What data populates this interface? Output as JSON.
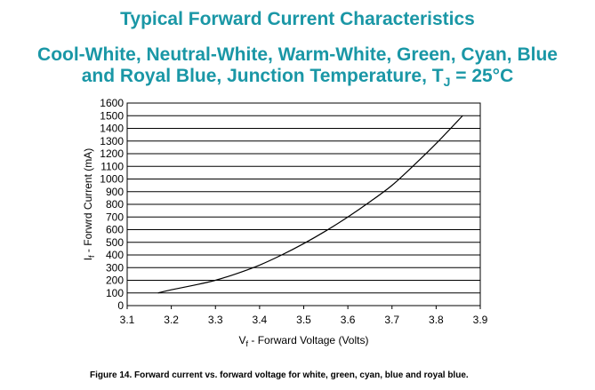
{
  "header": {
    "title": "Typical Forward Current Characteristics",
    "subtitle_line1": "Cool-White, Neutral-White, Warm-White, Green, Cyan, Blue",
    "subtitle_line2_pre": "and Royal Blue, Junction Temperature, T",
    "subtitle_line2_sub": "J",
    "subtitle_line2_post": " = 25°C"
  },
  "caption": "Figure 14.  Forward current vs. forward voltage for white, green, cyan, blue and royal blue.",
  "chart_data": {
    "type": "line",
    "title": "Typical Forward Current Characteristics",
    "xlabel_main": "V",
    "xlabel_sub": "f",
    "xlabel_rest": " - Forward Voltage (Volts)",
    "ylabel_main": "I",
    "ylabel_sub": "f",
    "ylabel_rest": " - Forwrd Current (mA)",
    "xlim": [
      3.1,
      3.9
    ],
    "ylim": [
      0,
      1600
    ],
    "xticks": [
      "3.1",
      "3.2",
      "3.3",
      "3.4",
      "3.5",
      "3.6",
      "3.7",
      "3.8",
      "3.9"
    ],
    "yticks": [
      "0",
      "100",
      "200",
      "300",
      "400",
      "500",
      "600",
      "700",
      "800",
      "900",
      "1000",
      "1100",
      "1200",
      "1300",
      "1400",
      "1500",
      "1600"
    ],
    "grid": "horizontal",
    "series": [
      {
        "color": "#000000",
        "x": [
          3.17,
          3.2,
          3.25,
          3.3,
          3.35,
          3.4,
          3.45,
          3.5,
          3.55,
          3.6,
          3.65,
          3.7,
          3.75,
          3.8,
          3.86
        ],
        "y": [
          100,
          125,
          160,
          200,
          255,
          320,
          400,
          490,
          590,
          700,
          820,
          950,
          1110,
          1280,
          1500
        ]
      }
    ]
  }
}
